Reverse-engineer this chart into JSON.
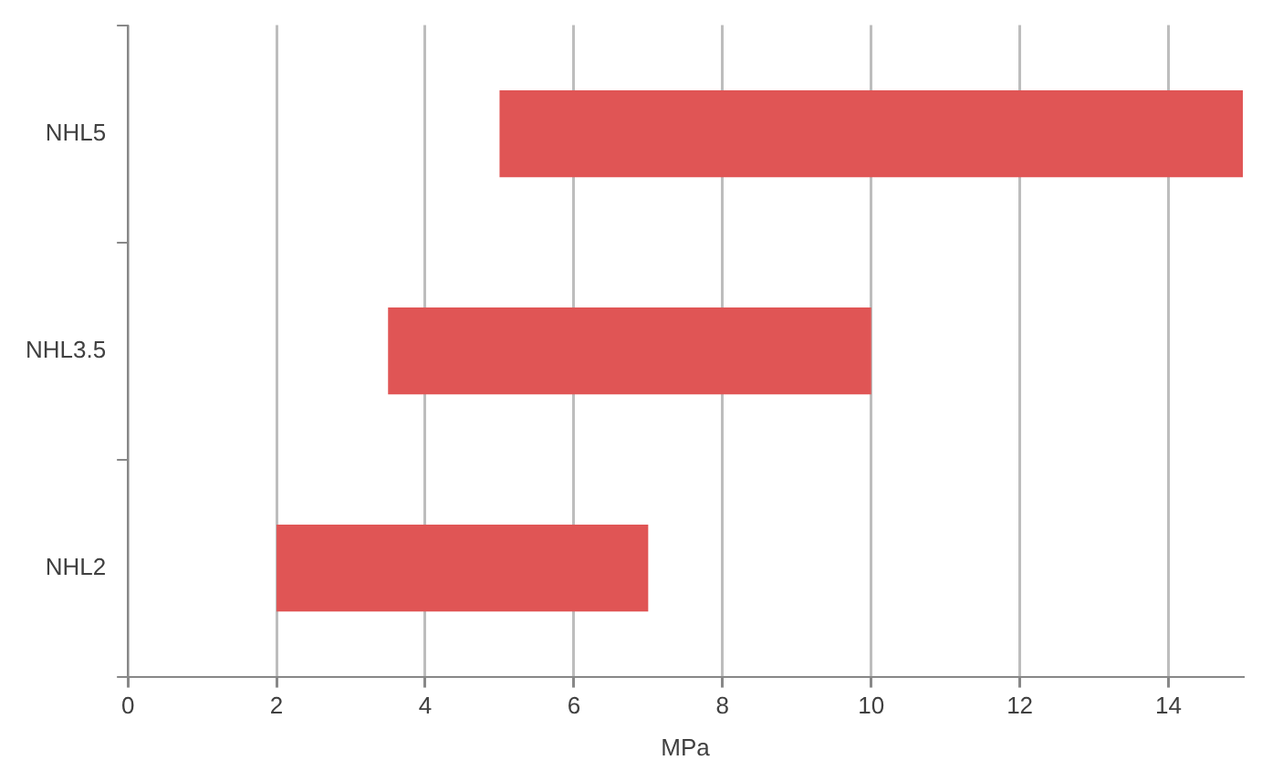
{
  "chart_data": {
    "type": "bar",
    "orientation": "horizontal",
    "xlabel": "MPa",
    "categories": [
      "NHL5",
      "NHL3.5",
      "NHL2"
    ],
    "base": [
      5,
      3.5,
      2
    ],
    "values": [
      10,
      6.5,
      5
    ],
    "color": "#e05555",
    "xlim": [
      0,
      15
    ],
    "xticks": [
      0,
      2,
      4,
      6,
      8,
      10,
      12,
      14
    ],
    "grid": "x",
    "legend": false
  }
}
